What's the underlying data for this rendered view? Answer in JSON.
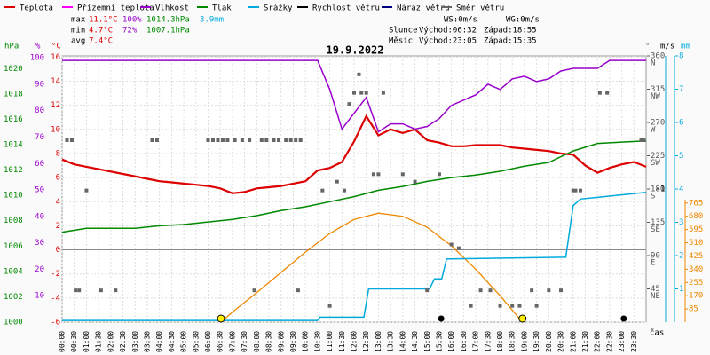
{
  "chart_data": {
    "type": "line",
    "title": "19.9.2022",
    "x_label": "čas",
    "xlim": [
      0,
      24
    ],
    "xticks": [
      {
        "value": 0,
        "label": "00:00"
      },
      {
        "value": 0.5,
        "label": "00:30"
      },
      {
        "value": 1,
        "label": "01:00"
      },
      {
        "value": 1.5,
        "label": "01:30"
      },
      {
        "value": 2,
        "label": "02:00"
      },
      {
        "value": 2.5,
        "label": "02:30"
      },
      {
        "value": 3,
        "label": "03:00"
      },
      {
        "value": 3.5,
        "label": "03:30"
      },
      {
        "value": 4,
        "label": "04:00"
      },
      {
        "value": 4.5,
        "label": "04:30"
      },
      {
        "value": 5,
        "label": "05:00"
      },
      {
        "value": 5.5,
        "label": "05:30"
      },
      {
        "value": 6,
        "label": "06:00"
      },
      {
        "value": 6.5,
        "label": "06:30"
      },
      {
        "value": 7,
        "label": "07:00"
      },
      {
        "value": 7.5,
        "label": "07:30"
      },
      {
        "value": 8,
        "label": "08:00"
      },
      {
        "value": 8.5,
        "label": "08:30"
      },
      {
        "value": 9,
        "label": "09:00"
      },
      {
        "value": 9.5,
        "label": "09:30"
      },
      {
        "value": 10,
        "label": "10:00"
      },
      {
        "value": 10.5,
        "label": "10:30"
      },
      {
        "value": 11,
        "label": "11:00"
      },
      {
        "value": 11.5,
        "label": "11:30"
      },
      {
        "value": 12,
        "label": "12:00"
      },
      {
        "value": 12.5,
        "label": "12:30"
      },
      {
        "value": 13,
        "label": "13:00"
      },
      {
        "value": 13.5,
        "label": "13:30"
      },
      {
        "value": 14,
        "label": "14:00"
      },
      {
        "value": 14.5,
        "label": "14:30"
      },
      {
        "value": 15,
        "label": "15:00"
      },
      {
        "value": 15.5,
        "label": "15:30"
      },
      {
        "value": 16,
        "label": "16:00"
      },
      {
        "value": 16.5,
        "label": "16:30"
      },
      {
        "value": 17,
        "label": "17:00"
      },
      {
        "value": 17.5,
        "label": "17:30"
      },
      {
        "value": 18,
        "label": "18:00"
      },
      {
        "value": 18.5,
        "label": "18:30"
      },
      {
        "value": 19,
        "label": "19:00"
      },
      {
        "value": 19.5,
        "label": "19:30"
      },
      {
        "value": 20,
        "label": "20:00"
      },
      {
        "value": 20.5,
        "label": "20:30"
      },
      {
        "value": 21,
        "label": "21:00"
      },
      {
        "value": 21.5,
        "label": "21:30"
      },
      {
        "value": 22,
        "label": "22:00"
      },
      {
        "value": 22.5,
        "label": "22:30"
      },
      {
        "value": 23,
        "label": "23:00"
      },
      {
        "value": 23.5,
        "label": "23:30"
      }
    ],
    "grid": true,
    "axes": [
      {
        "label": "hPa",
        "color": "#008800",
        "lim": [
          1000,
          1021
        ],
        "ticks": [
          1000,
          1002,
          1004,
          1006,
          1008,
          1010,
          1012,
          1014,
          1016,
          1018,
          1020
        ]
      },
      {
        "label": "%",
        "color": "#9900cc",
        "lim": [
          0,
          100.7
        ],
        "ticks": [
          10,
          20,
          30,
          40,
          50,
          60,
          70,
          80,
          90,
          100
        ]
      },
      {
        "label": "°C",
        "color": "#dd0000",
        "lim": [
          -6,
          16.1
        ],
        "ticks": [
          -6,
          -4,
          -2,
          0,
          2,
          4,
          6,
          8,
          10,
          12,
          14,
          16
        ]
      },
      {
        "label": "°",
        "color": "#555555",
        "lim": [
          0,
          360
        ],
        "ticks": [
          45,
          90,
          135,
          180,
          225,
          270,
          315,
          360
        ],
        "tick_names": [
          "NE",
          "E",
          "SE",
          "S",
          "SW",
          "W",
          "NW",
          "N"
        ]
      },
      {
        "label": "m/s",
        "color": "#000000",
        "lim": [
          0,
          2
        ],
        "ticks": [
          1
        ]
      },
      {
        "label": "mm",
        "color": "#00aadd",
        "lim": [
          0,
          8
        ],
        "ticks": [
          1,
          2,
          3,
          4,
          5,
          6,
          7,
          8
        ]
      },
      {
        "color": "#ee8800",
        "lim": [
          0,
          1710
        ],
        "ticks": [
          85,
          170,
          255,
          340,
          425,
          510,
          595,
          680,
          765
        ]
      }
    ],
    "series": [
      {
        "name": "Teplota",
        "color": "#dd0000",
        "axis": 2,
        "style": "line",
        "x": [
          0,
          0.5,
          1,
          1.5,
          2,
          2.5,
          3,
          3.5,
          4,
          4.5,
          5,
          5.5,
          6,
          6.5,
          7,
          7.5,
          8,
          8.5,
          9,
          9.5,
          10,
          10.5,
          11,
          11.5,
          12,
          12.5,
          13,
          13.5,
          14,
          14.5,
          15,
          15.5,
          16,
          16.5,
          17,
          17.5,
          18,
          18.5,
          19,
          19.5,
          20,
          20.5,
          21,
          21.5,
          22,
          22.5,
          23,
          23.5,
          24
        ],
        "values": [
          7.5,
          7.1,
          6.9,
          6.7,
          6.5,
          6.3,
          6.1,
          5.9,
          5.7,
          5.6,
          5.5,
          5.4,
          5.3,
          5.1,
          4.7,
          4.8,
          5.1,
          5.2,
          5.3,
          5.5,
          5.7,
          6.6,
          6.8,
          7.3,
          9.0,
          11.1,
          9.5,
          10.0,
          9.7,
          10.0,
          9.1,
          8.9,
          8.6,
          8.6,
          8.7,
          8.7,
          8.7,
          8.5,
          8.4,
          8.3,
          8.2,
          8.0,
          7.9,
          7.0,
          6.4,
          6.8,
          7.1,
          7.3,
          6.9
        ]
      },
      {
        "name": "Přízemní teplota",
        "color": "#ff00ff"
      },
      {
        "name": "Vlhkost",
        "color": "#9900cc",
        "axis": 1,
        "style": "line",
        "x": [
          0,
          0.5,
          1,
          1.5,
          2,
          2.5,
          3,
          3.5,
          4,
          4.5,
          5,
          5.5,
          6,
          6.5,
          7,
          7.5,
          8,
          8.5,
          9,
          9.5,
          10,
          10.5,
          11,
          11.5,
          12,
          12.5,
          13,
          13.5,
          14,
          14.5,
          15,
          15.5,
          16,
          16.5,
          17,
          17.5,
          18,
          18.5,
          19,
          19.5,
          20,
          20.5,
          21,
          21.5,
          22,
          22.5,
          23,
          23.5,
          24
        ],
        "values": [
          99,
          99,
          99,
          99,
          99,
          99,
          99,
          99,
          99,
          99,
          99,
          99,
          99,
          99,
          99,
          99,
          99,
          99,
          99,
          99,
          99,
          99,
          88,
          73,
          79,
          85,
          72,
          75,
          75,
          73,
          74,
          77,
          82,
          84,
          86,
          90,
          88,
          92,
          93,
          91,
          92,
          95,
          96,
          96,
          96,
          99,
          99,
          99,
          99
        ]
      },
      {
        "name": "Tlak",
        "color": "#008800",
        "axis": 0,
        "style": "line",
        "x": [
          0,
          1,
          2,
          3,
          4,
          5,
          6,
          7,
          8,
          9,
          10,
          11,
          12,
          13,
          14,
          15,
          16,
          17,
          18,
          19,
          20,
          21,
          22,
          23,
          24
        ],
        "values": [
          1007.1,
          1007.4,
          1007.4,
          1007.4,
          1007.6,
          1007.7,
          1007.9,
          1008.1,
          1008.4,
          1008.8,
          1009.1,
          1009.5,
          1009.9,
          1010.4,
          1010.7,
          1011.1,
          1011.4,
          1011.6,
          1011.9,
          1012.3,
          1012.6,
          1013.5,
          1014.1,
          1014.2,
          1014.3
        ]
      },
      {
        "name": "Srážky",
        "color": "#00aadd",
        "axis": 5,
        "style": "line",
        "x": [
          0,
          10.5,
          10.6,
          12.4,
          12.6,
          15.1,
          15.3,
          15.6,
          15.8,
          20.7,
          21,
          21.3,
          22,
          24
        ],
        "values": [
          0.05,
          0.05,
          0.15,
          0.15,
          1.0,
          1.0,
          1.3,
          1.3,
          1.9,
          1.95,
          3.5,
          3.7,
          3.75,
          3.9
        ]
      },
      {
        "name": "Rychlost větru",
        "color": "#000000"
      },
      {
        "name": "Náraz větru",
        "color": "#000080"
      },
      {
        "name": "Směr větru",
        "color": "#666666",
        "axis": 3,
        "style": "points",
        "x": [
          0.2,
          0.4,
          1.0,
          0.55,
          0.7,
          1.6,
          2.2,
          3.7,
          3.9,
          6.0,
          6.2,
          6.4,
          6.6,
          6.8,
          7.1,
          7.4,
          7.7,
          7.9,
          8.2,
          8.4,
          8.7,
          8.9,
          9.2,
          9.4,
          9.6,
          9.7,
          9.8,
          10.7,
          11.0,
          11.3,
          11.6,
          11.8,
          12.0,
          12.2,
          12.3,
          12.5,
          12.8,
          13.0,
          13.2,
          14.0,
          14.5,
          15.0,
          15.5,
          16.0,
          16.3,
          16.8,
          17.2,
          17.6,
          18.0,
          18.5,
          18.8,
          19.3,
          19.5,
          20.0,
          20.5,
          21.0,
          21.1,
          21.3,
          22.1,
          22.4,
          23.8,
          23.9
        ],
        "values": [
          246,
          246,
          178,
          43,
          43,
          43,
          43,
          246,
          246,
          246,
          246,
          246,
          246,
          246,
          246,
          246,
          246,
          43,
          246,
          246,
          246,
          246,
          246,
          246,
          246,
          43,
          246,
          178,
          22,
          190,
          178,
          295,
          310,
          335,
          310,
          310,
          200,
          200,
          310,
          200,
          190,
          43,
          200,
          105,
          100,
          22,
          43,
          43,
          22,
          22,
          22,
          43,
          22,
          43,
          43,
          178,
          178,
          178,
          310,
          310,
          246,
          246
        ]
      }
    ],
    "radiation": {
      "color": "#ee8800",
      "axis": 6,
      "x": [
        6.53,
        7,
        8,
        9,
        10,
        11,
        12,
        13,
        14,
        15,
        16,
        17,
        18,
        18.92
      ],
      "values": [
        0,
        65,
        190,
        320,
        450,
        570,
        660,
        700,
        680,
        610,
        490,
        340,
        170,
        0
      ]
    },
    "sun_marks_x": [
      6.53,
      18.92
    ],
    "moon_marks_x": [
      15.58,
      23.08
    ],
    "stats": {
      "rows": [
        [
          "max",
          "11.1°C",
          "100%",
          "1014.3hPa",
          "3.9mm"
        ],
        [
          "min",
          "4.7°C",
          "72%",
          "1007.1hPa"
        ],
        [
          "avg",
          "7.4°C"
        ]
      ],
      "wind": [
        "WS:0m/s",
        "WG:0m/s"
      ],
      "sun": [
        "Slunce",
        "Východ:06:32",
        "Západ:18:55"
      ],
      "moon": [
        "Měsíc",
        "Východ:23:05",
        "Západ:15:35"
      ]
    }
  }
}
